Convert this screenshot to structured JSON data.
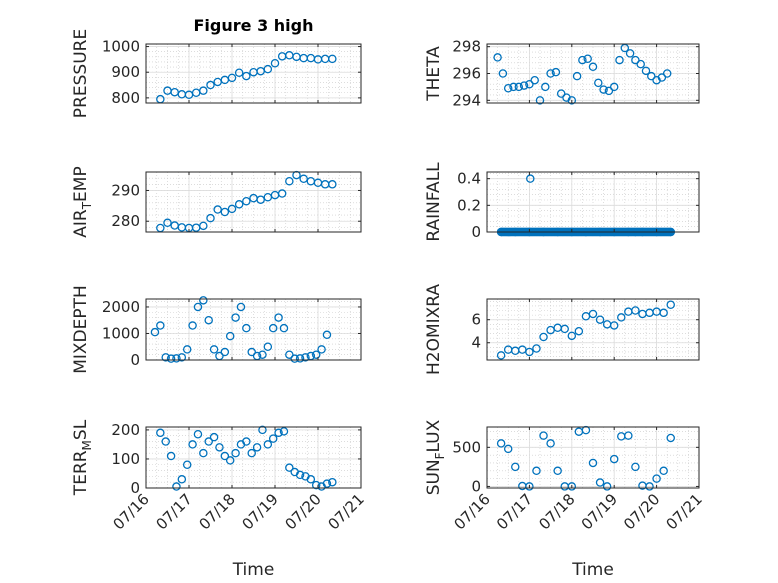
{
  "title": "Figure 3 high",
  "xlabel": "Time",
  "x_ticks": [
    "07/16",
    "07/17",
    "07/18",
    "07/19",
    "07/20",
    "07/21"
  ],
  "marker_color": "#0072bd",
  "chart_data": [
    {
      "type": "scatter",
      "name": "PRESSURE",
      "ylabel_main": "PRESSURE",
      "ylabel_sub": "",
      "ylim": [
        780,
        1010
      ],
      "yticks": [
        800,
        900,
        1000
      ],
      "grid": true,
      "minor_grid": true,
      "x": [
        "07/16 08:00",
        "07/16 12:00",
        "07/16 16:00",
        "07/16 20:00",
        "07/17 00:00",
        "07/17 04:00",
        "07/17 08:00",
        "07/17 12:00",
        "07/17 16:00",
        "07/17 20:00",
        "07/18 00:00",
        "07/18 04:00",
        "07/18 08:00",
        "07/18 12:00",
        "07/18 16:00",
        "07/18 20:00",
        "07/19 00:00",
        "07/19 04:00",
        "07/19 08:00",
        "07/19 12:00",
        "07/19 16:00",
        "07/19 20:00",
        "07/20 00:00",
        "07/20 04:00",
        "07/20 08:00"
      ],
      "y": [
        795,
        828,
        822,
        814,
        812,
        820,
        828,
        850,
        862,
        870,
        878,
        898,
        885,
        900,
        904,
        912,
        935,
        962,
        966,
        960,
        955,
        955,
        950,
        952,
        952
      ]
    },
    {
      "type": "scatter",
      "name": "THETA",
      "ylabel_main": "THETA",
      "ylabel_sub": "",
      "ylim": [
        293.8,
        298.2
      ],
      "yticks": [
        294,
        296,
        298
      ],
      "grid": true,
      "minor_grid": true,
      "x": [
        "07/16 06:00",
        "07/16 09:00",
        "07/16 12:00",
        "07/16 15:00",
        "07/16 18:00",
        "07/16 21:00",
        "07/17 00:00",
        "07/17 03:00",
        "07/17 06:00",
        "07/17 09:00",
        "07/17 12:00",
        "07/17 15:00",
        "07/17 18:00",
        "07/17 21:00",
        "07/18 00:00",
        "07/18 03:00",
        "07/18 06:00",
        "07/18 09:00",
        "07/18 12:00",
        "07/18 15:00",
        "07/18 18:00",
        "07/18 21:00",
        "07/19 00:00",
        "07/19 03:00",
        "07/19 06:00",
        "07/19 09:00",
        "07/19 12:00",
        "07/19 15:00",
        "07/19 18:00",
        "07/19 21:00",
        "07/20 00:00",
        "07/20 03:00",
        "07/20 06:00"
      ],
      "y": [
        297.2,
        296.0,
        294.9,
        295.0,
        295.0,
        295.1,
        295.2,
        295.5,
        294.0,
        295.0,
        296.0,
        296.1,
        294.5,
        294.2,
        294.0,
        295.8,
        297.0,
        297.1,
        296.5,
        295.3,
        294.8,
        294.7,
        295.0,
        297.0,
        297.9,
        297.5,
        297.0,
        296.7,
        296.2,
        295.8,
        295.5,
        295.7,
        296.0
      ]
    },
    {
      "type": "scatter",
      "name": "AIR_TEMP",
      "ylabel_main": "AIR",
      "ylabel_sub": "T",
      "ylabel_rest": "EMP",
      "ylim": [
        276.5,
        296
      ],
      "yticks": [
        280,
        290
      ],
      "grid": true,
      "minor_grid": true,
      "x": [
        "07/16 08:00",
        "07/16 12:00",
        "07/16 16:00",
        "07/16 20:00",
        "07/17 00:00",
        "07/17 04:00",
        "07/17 08:00",
        "07/17 12:00",
        "07/17 16:00",
        "07/17 20:00",
        "07/18 00:00",
        "07/18 04:00",
        "07/18 08:00",
        "07/18 12:00",
        "07/18 16:00",
        "07/18 20:00",
        "07/19 00:00",
        "07/19 04:00",
        "07/19 08:00",
        "07/19 12:00",
        "07/19 16:00",
        "07/19 20:00",
        "07/20 00:00",
        "07/20 04:00",
        "07/20 08:00"
      ],
      "y": [
        277.8,
        279.5,
        278.6,
        278.0,
        277.8,
        277.9,
        278.5,
        281.0,
        283.8,
        283.0,
        284.0,
        285.5,
        286.5,
        287.5,
        287.0,
        287.8,
        288.5,
        289.0,
        293.0,
        295.0,
        293.8,
        293.0,
        292.5,
        292.0,
        292.0
      ]
    },
    {
      "type": "scatter",
      "name": "RAINFALL",
      "ylabel_main": "RAINFALL",
      "ylabel_sub": "",
      "ylim": [
        0,
        0.45
      ],
      "yticks": [
        0,
        0.2,
        0.4
      ],
      "grid": true,
      "minor_grid": true,
      "x": [
        "07/16 08:00",
        "07/16 16:00",
        "07/17 00:00",
        "07/17 08:00",
        "07/17 16:00",
        "07/18 00:00",
        "07/18 08:00",
        "07/18 16:00",
        "07/19 00:00",
        "07/19 08:00",
        "07/19 16:00",
        "07/20 00:00",
        "07/20 08:00",
        "07/17 00:30"
      ],
      "y": [
        0,
        0,
        0,
        0,
        0,
        0,
        0,
        0,
        0,
        0,
        0,
        0,
        0,
        0.4
      ]
    },
    {
      "type": "scatter",
      "name": "MIXDEPTH",
      "ylabel_main": "MIXDEPTH",
      "ylabel_sub": "",
      "ylim": [
        0,
        2300
      ],
      "yticks": [
        0,
        1000,
        2000
      ],
      "grid": true,
      "minor_grid": true,
      "x": [
        "07/16 05:00",
        "07/16 08:00",
        "07/16 11:00",
        "07/16 14:00",
        "07/16 17:00",
        "07/16 20:00",
        "07/16 23:00",
        "07/17 02:00",
        "07/17 05:00",
        "07/17 08:00",
        "07/17 11:00",
        "07/17 14:00",
        "07/17 17:00",
        "07/17 20:00",
        "07/17 23:00",
        "07/18 02:00",
        "07/18 05:00",
        "07/18 08:00",
        "07/18 11:00",
        "07/18 14:00",
        "07/18 17:00",
        "07/18 20:00",
        "07/18 23:00",
        "07/19 02:00",
        "07/19 05:00",
        "07/19 08:00",
        "07/19 11:00",
        "07/19 14:00",
        "07/19 17:00",
        "07/19 20:00",
        "07/19 23:00",
        "07/20 02:00",
        "07/20 05:00"
      ],
      "y": [
        1050,
        1300,
        100,
        50,
        60,
        100,
        400,
        1300,
        2000,
        2250,
        1500,
        400,
        150,
        300,
        900,
        1600,
        2000,
        1200,
        300,
        150,
        200,
        500,
        1200,
        1600,
        1200,
        200,
        50,
        60,
        100,
        150,
        200,
        400,
        950
      ]
    },
    {
      "type": "scatter",
      "name": "H2OMIXRA",
      "ylabel_main": "H2OMIXRA",
      "ylabel_sub": "",
      "ylim": [
        2.5,
        7.8
      ],
      "yticks": [
        4,
        6
      ],
      "grid": true,
      "minor_grid": true,
      "x": [
        "07/16 08:00",
        "07/16 12:00",
        "07/16 16:00",
        "07/16 20:00",
        "07/17 00:00",
        "07/17 04:00",
        "07/17 08:00",
        "07/17 12:00",
        "07/17 16:00",
        "07/17 20:00",
        "07/18 00:00",
        "07/18 04:00",
        "07/18 08:00",
        "07/18 12:00",
        "07/18 16:00",
        "07/18 20:00",
        "07/19 00:00",
        "07/19 04:00",
        "07/19 08:00",
        "07/19 12:00",
        "07/19 16:00",
        "07/19 20:00",
        "07/20 00:00",
        "07/20 04:00",
        "07/20 08:00"
      ],
      "y": [
        2.9,
        3.4,
        3.3,
        3.4,
        3.2,
        3.5,
        4.5,
        5.1,
        5.3,
        5.2,
        4.6,
        5.0,
        6.3,
        6.5,
        6.0,
        5.6,
        5.5,
        6.2,
        6.7,
        6.8,
        6.5,
        6.6,
        6.7,
        6.6,
        7.3
      ]
    },
    {
      "type": "scatter",
      "name": "TERR_MSL",
      "ylabel_main": "TERR",
      "ylabel_sub": "M",
      "ylabel_rest": "SL",
      "ylim": [
        0,
        210
      ],
      "yticks": [
        0,
        100,
        200
      ],
      "grid": true,
      "minor_grid": true,
      "x": [
        "07/16 08:00",
        "07/16 11:00",
        "07/16 14:00",
        "07/16 17:00",
        "07/16 20:00",
        "07/16 23:00",
        "07/17 02:00",
        "07/17 05:00",
        "07/17 08:00",
        "07/17 11:00",
        "07/17 14:00",
        "07/17 17:00",
        "07/17 20:00",
        "07/17 23:00",
        "07/18 02:00",
        "07/18 05:00",
        "07/18 08:00",
        "07/18 11:00",
        "07/18 14:00",
        "07/18 17:00",
        "07/18 20:00",
        "07/18 23:00",
        "07/19 02:00",
        "07/19 05:00",
        "07/19 08:00",
        "07/19 11:00",
        "07/19 14:00",
        "07/19 17:00",
        "07/19 20:00",
        "07/19 23:00",
        "07/20 02:00",
        "07/20 05:00",
        "07/20 08:00"
      ],
      "y": [
        190,
        160,
        110,
        5,
        30,
        80,
        150,
        185,
        120,
        160,
        175,
        140,
        110,
        95,
        120,
        150,
        160,
        120,
        140,
        200,
        150,
        170,
        190,
        195,
        70,
        55,
        45,
        40,
        30,
        10,
        5,
        15,
        20
      ]
    },
    {
      "type": "scatter",
      "name": "SUN_FLUX",
      "ylabel_main": "SUN",
      "ylabel_sub": "F",
      "ylabel_rest": "LUX",
      "ylim": [
        -20,
        760
      ],
      "yticks": [
        0,
        500
      ],
      "grid": true,
      "minor_grid": true,
      "x": [
        "07/16 08:00",
        "07/16 12:00",
        "07/16 16:00",
        "07/16 20:00",
        "07/17 00:00",
        "07/17 04:00",
        "07/17 08:00",
        "07/17 12:00",
        "07/17 16:00",
        "07/17 20:00",
        "07/18 00:00",
        "07/18 04:00",
        "07/18 08:00",
        "07/18 12:00",
        "07/18 16:00",
        "07/18 20:00",
        "07/19 00:00",
        "07/19 04:00",
        "07/19 08:00",
        "07/19 12:00",
        "07/19 16:00",
        "07/19 20:00",
        "07/20 00:00",
        "07/20 04:00",
        "07/20 08:00"
      ],
      "y": [
        550,
        480,
        250,
        5,
        0,
        200,
        650,
        550,
        200,
        0,
        0,
        700,
        720,
        300,
        50,
        0,
        350,
        640,
        650,
        250,
        10,
        0,
        100,
        200,
        620
      ]
    }
  ]
}
